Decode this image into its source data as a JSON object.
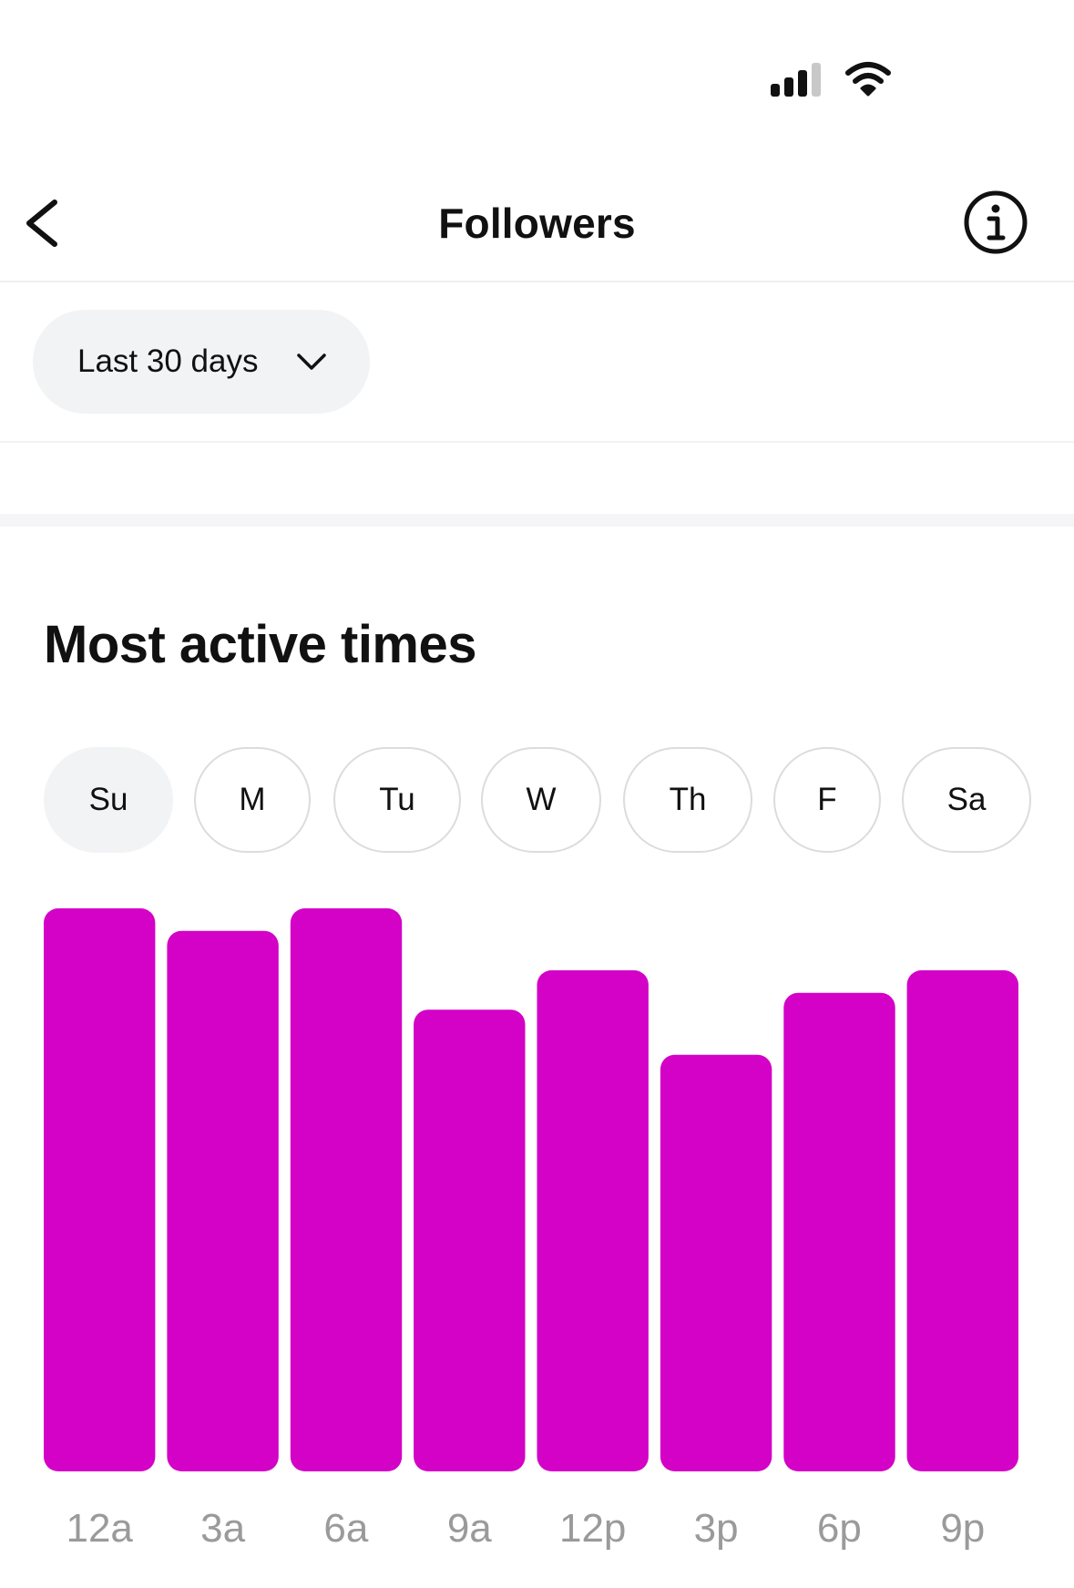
{
  "status_bar": {
    "signal_icon": "cellular-signal-icon",
    "wifi_icon": "wifi-icon"
  },
  "nav": {
    "title": "Followers",
    "back_icon": "chevron-left-icon",
    "info_icon": "info-icon"
  },
  "filter": {
    "date_range_label": "Last 30 days",
    "dropdown_icon": "chevron-down-icon"
  },
  "section": {
    "title": "Most active times"
  },
  "days": [
    {
      "label": "Su",
      "selected": true
    },
    {
      "label": "M",
      "selected": false
    },
    {
      "label": "Tu",
      "selected": false
    },
    {
      "label": "W",
      "selected": false
    },
    {
      "label": "Th",
      "selected": false
    },
    {
      "label": "F",
      "selected": false
    },
    {
      "label": "Sa",
      "selected": false
    }
  ],
  "colors": {
    "bar": "#d302c6",
    "tick_label": "#9a9a9a",
    "selected_tab_bg": "#f2f3f5"
  },
  "chart_data": {
    "type": "bar",
    "categories": [
      "12a",
      "3a",
      "6a",
      "9a",
      "12p",
      "3p",
      "6p",
      "9p"
    ],
    "values": [
      100,
      96,
      100,
      82,
      89,
      74,
      85,
      89
    ],
    "title": "",
    "xlabel": "",
    "ylabel": "",
    "ylim": [
      0,
      100
    ],
    "grid": false,
    "legend": "none"
  }
}
